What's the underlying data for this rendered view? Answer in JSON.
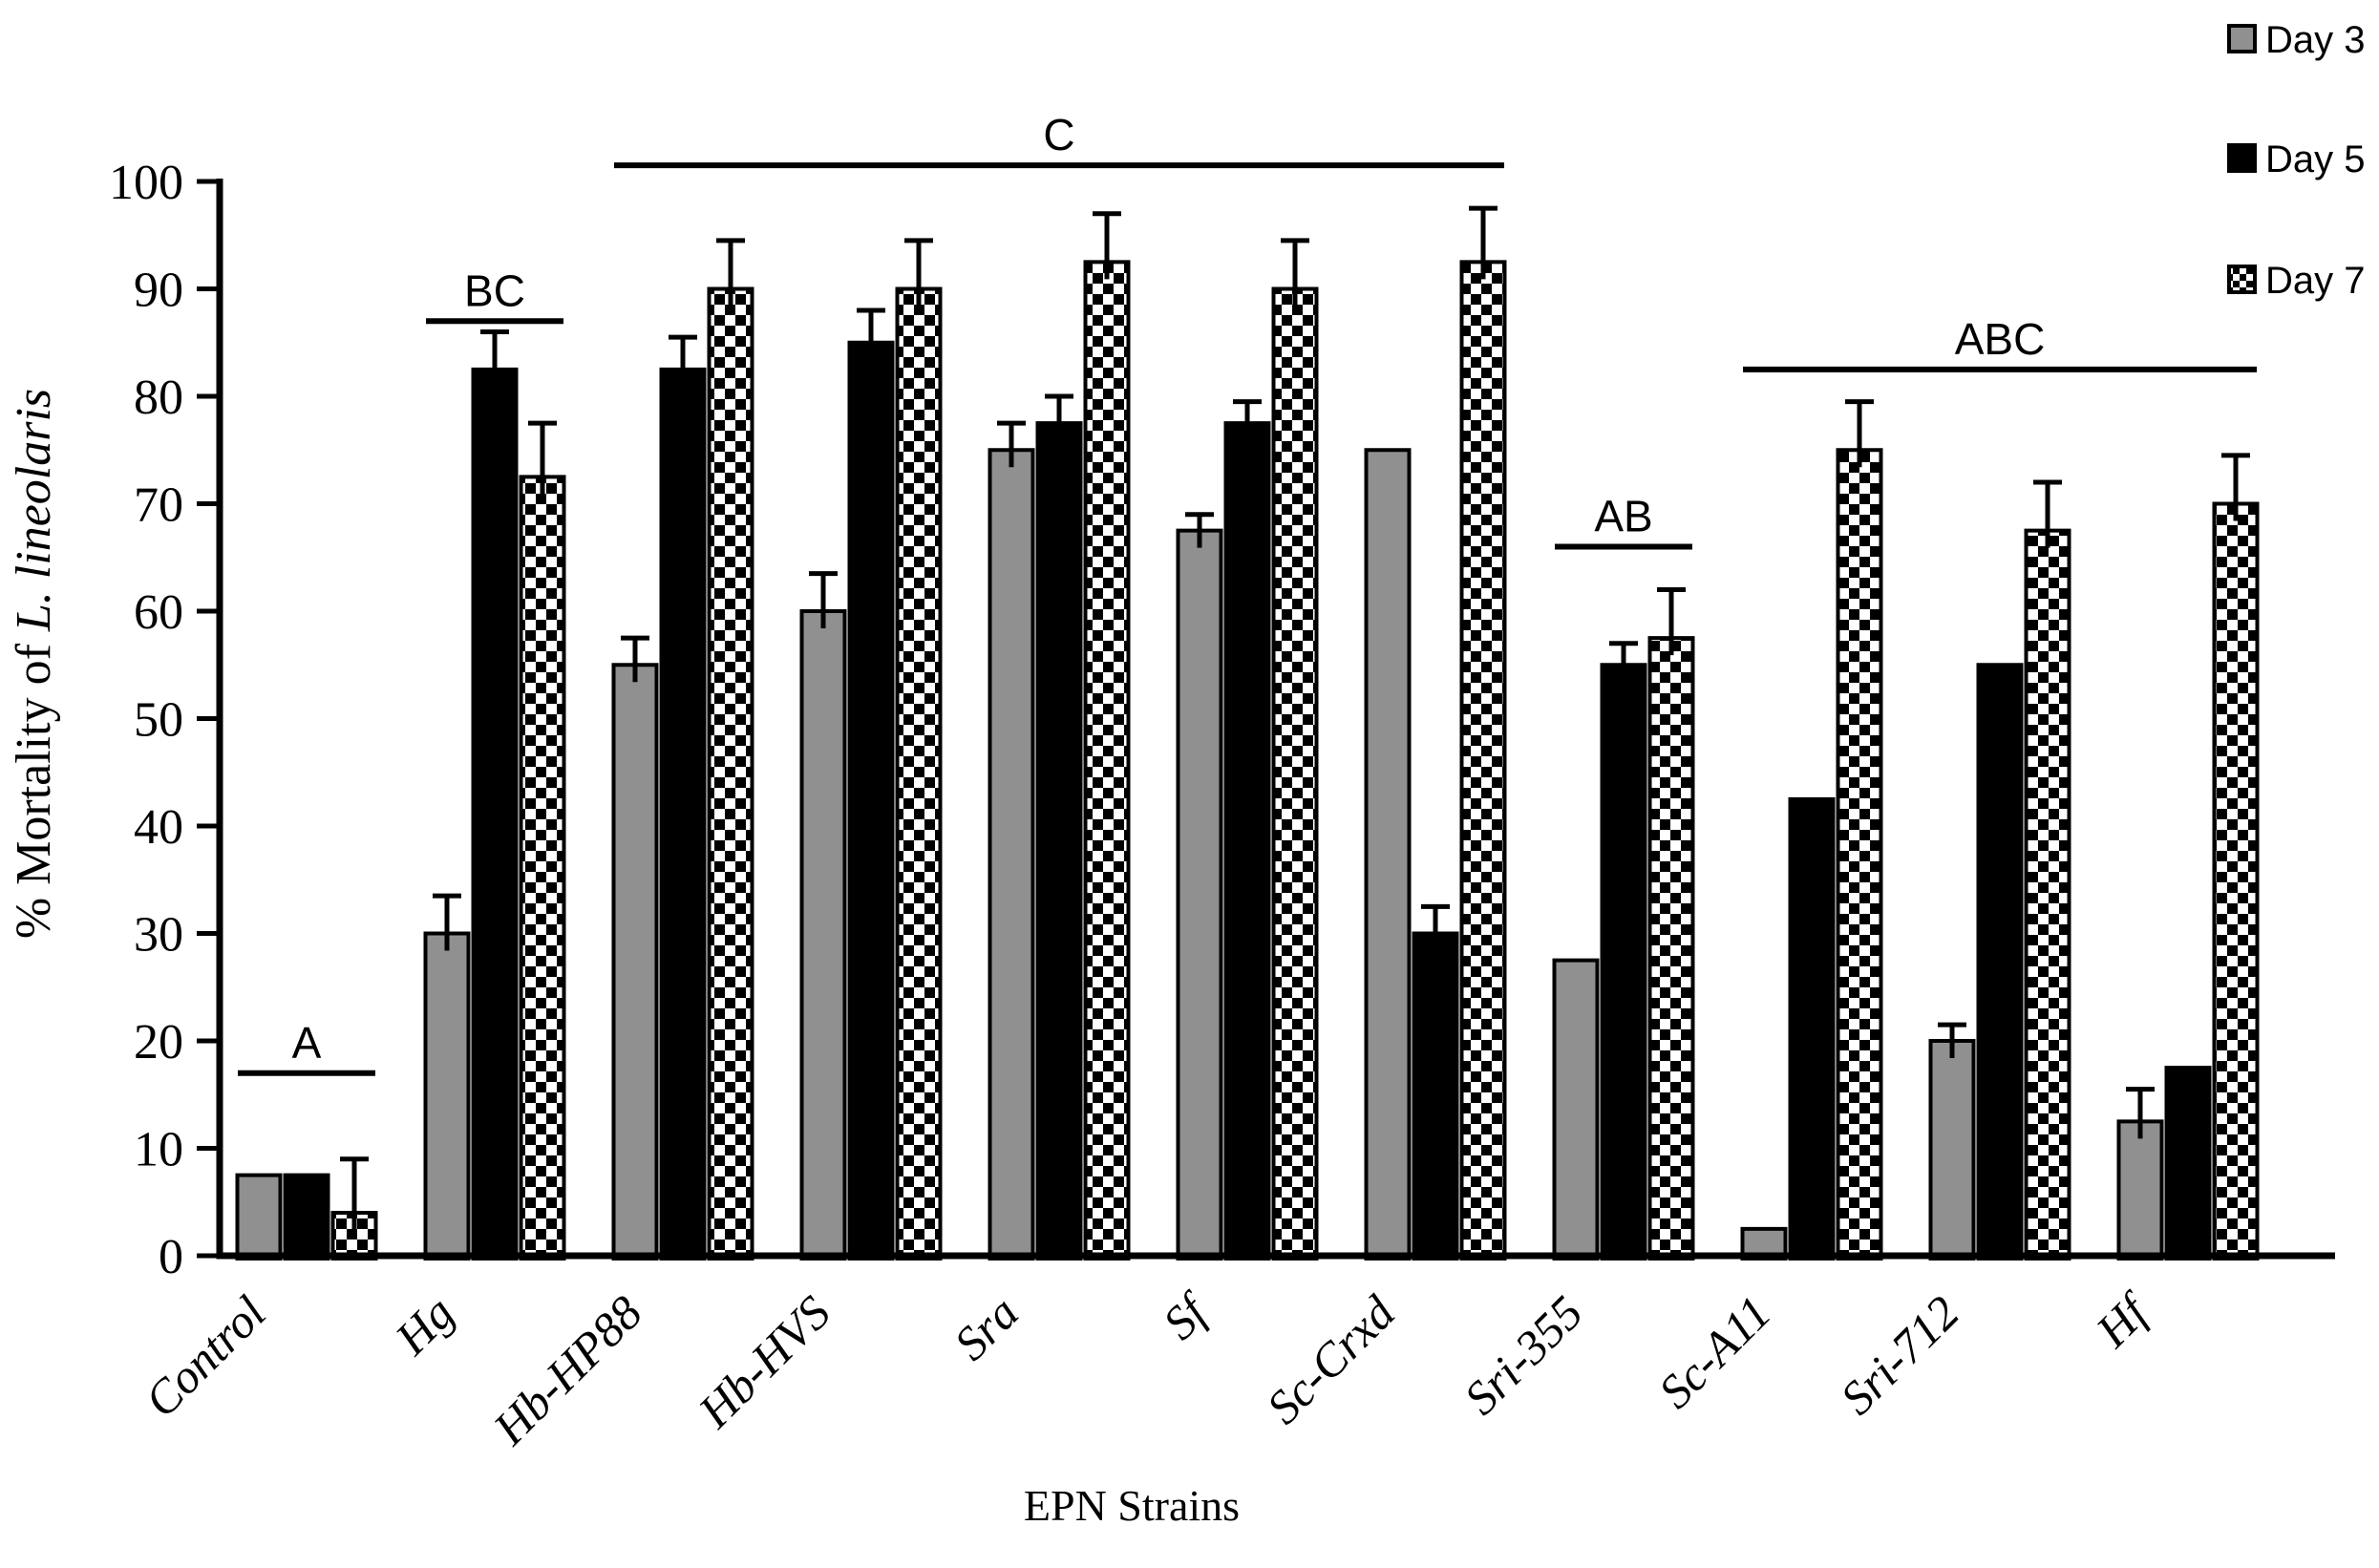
{
  "chart_data": {
    "type": "bar",
    "title": "",
    "xlabel": "EPN Strains",
    "ylabel": {
      "prefix": "% Mortality of ",
      "italic": "L. lineolaris"
    },
    "ylim": [
      0,
      100
    ],
    "yticks": [
      0,
      10,
      20,
      30,
      40,
      50,
      60,
      70,
      80,
      90,
      100
    ],
    "grid": false,
    "legend_position": "top-right",
    "categories": [
      "Control",
      "Hg",
      "Hb-HP88",
      "Hb-HVS",
      "Sra",
      "Sf",
      "Sc-Crxd",
      "Sri-355",
      "Sc-A11",
      "Sri-712",
      "Hf"
    ],
    "series": [
      {
        "name": "Day 3",
        "style": "gray",
        "color": "#909090",
        "values": [
          7.5,
          30,
          55,
          60,
          75,
          67.5,
          75,
          27.5,
          2.5,
          20,
          12.5
        ],
        "errors": [
          0,
          3.5,
          2.5,
          3.5,
          2.5,
          1.5,
          0,
          0,
          0,
          1.5,
          3
        ]
      },
      {
        "name": "Day 5",
        "style": "black",
        "color": "#000000",
        "values": [
          7.5,
          82.5,
          82.5,
          85,
          77.5,
          77.5,
          30,
          55,
          42.5,
          55,
          17.5
        ],
        "errors": [
          0,
          3.5,
          3,
          3,
          2.5,
          2,
          2.5,
          2,
          0,
          0,
          0
        ]
      },
      {
        "name": "Day 7",
        "style": "checker",
        "color": "checkerboard-black-white",
        "values": [
          4,
          72.5,
          90,
          90,
          92.5,
          90,
          92.5,
          57.5,
          75,
          67.5,
          70
        ],
        "errors": [
          5,
          5,
          4.5,
          4.5,
          4.5,
          4.5,
          5,
          4.5,
          4.5,
          4.5,
          4.5
        ]
      }
    ],
    "significance_annotations": [
      {
        "label": "A",
        "from_category": 0,
        "to_category": 0,
        "y": 17
      },
      {
        "label": "BC",
        "from_category": 1,
        "to_category": 1,
        "y": 87
      },
      {
        "label": "C",
        "from_category": 2,
        "to_category": 6,
        "y": 101.5
      },
      {
        "label": "AB",
        "from_category": 7,
        "to_category": 7,
        "y": 66
      },
      {
        "label": "ABC",
        "from_category": 8,
        "to_category": 10,
        "y": 82.5
      }
    ],
    "legend": [
      {
        "label": "Day 3",
        "style": "gray"
      },
      {
        "label": "Day 5",
        "style": "black"
      },
      {
        "label": "Day 7",
        "style": "checker"
      }
    ],
    "axis_color": "#000000",
    "background_color": "#ffffff"
  }
}
